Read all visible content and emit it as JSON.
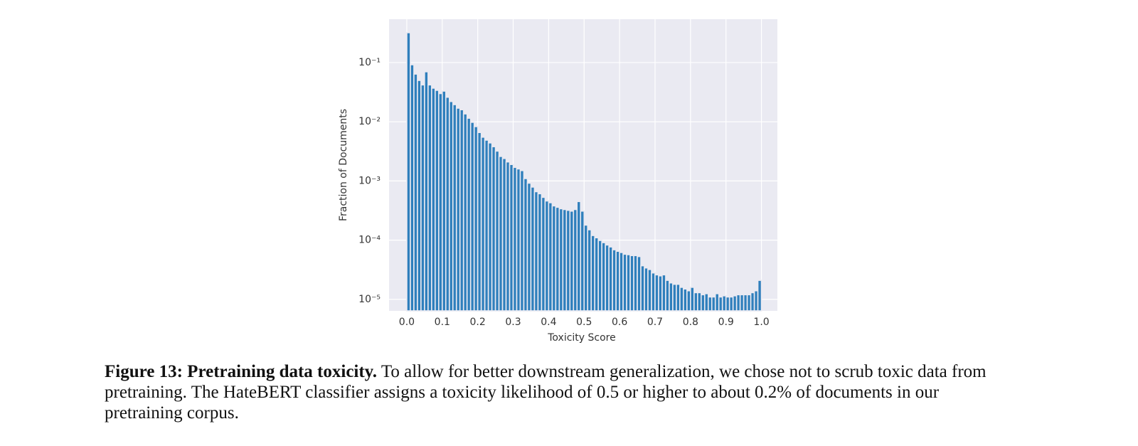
{
  "chart_data": {
    "type": "histogram",
    "xlabel": "Toxicity Score",
    "ylabel": "Fraction of Documents",
    "color": "#2f7fbc",
    "background": "#eaeaf2",
    "grid": true,
    "yscale": "log",
    "xlim": [
      -0.05,
      1.045
    ],
    "ylim": [
      6.4e-06,
      0.54
    ],
    "xticks": [
      {
        "value": 0,
        "label": "0.0"
      },
      0.1,
      0.2,
      0.3,
      0.4,
      0.5,
      0.6,
      0.7,
      0.8,
      0.9,
      {
        "value": 1,
        "label": "1.0"
      }
    ],
    "yticks": [
      {
        "value": 0.1,
        "label": "10⁻¹"
      },
      {
        "value": 0.01,
        "label": "10⁻²"
      },
      {
        "value": 0.001,
        "label": "10⁻³"
      },
      {
        "value": 0.0001,
        "label": "10⁻⁴"
      },
      {
        "value": 1e-05,
        "label": "10⁻⁵"
      }
    ],
    "bins": [
      0,
      0.01,
      0.02,
      0.03,
      0.04,
      0.05,
      0.06,
      0.07,
      0.08,
      0.09,
      0.1,
      0.11,
      0.12,
      0.13,
      0.14,
      0.15,
      0.16,
      0.17,
      0.18,
      0.19,
      0.2,
      0.21,
      0.22,
      0.23,
      0.24,
      0.25,
      0.26,
      0.27,
      0.28,
      0.29,
      0.3,
      0.31,
      0.32,
      0.33,
      0.34,
      0.35,
      0.36,
      0.37,
      0.38,
      0.39,
      0.4,
      0.41,
      0.42,
      0.43,
      0.44,
      0.45,
      0.46,
      0.47,
      0.48,
      0.49,
      0.5,
      0.51,
      0.52,
      0.53,
      0.54,
      0.55,
      0.56,
      0.57,
      0.58,
      0.59,
      0.6,
      0.61,
      0.62,
      0.63,
      0.64,
      0.65,
      0.66,
      0.67,
      0.68,
      0.69,
      0.7,
      0.71,
      0.72,
      0.73,
      0.74,
      0.75,
      0.76,
      0.77,
      0.78,
      0.79,
      0.8,
      0.81,
      0.82,
      0.83,
      0.84,
      0.85,
      0.86,
      0.87,
      0.88,
      0.89,
      0.9,
      0.91,
      0.92,
      0.93,
      0.94,
      0.95,
      0.96,
      0.97,
      0.98,
      0.99,
      1
    ],
    "values": [
      0.32,
      0.092,
      0.064,
      0.05,
      0.042,
      0.07,
      0.042,
      0.037,
      0.034,
      0.03,
      0.033,
      0.026,
      0.022,
      0.0195,
      0.017,
      0.016,
      0.0136,
      0.0115,
      0.0098,
      0.0083,
      0.0066,
      0.0055,
      0.0049,
      0.0044,
      0.0038,
      0.0032,
      0.0026,
      0.0024,
      0.0021,
      0.0019,
      0.0017,
      0.0016,
      0.0015,
      0.0011,
      0.00092,
      0.00079,
      0.00066,
      0.00061,
      0.00053,
      0.00046,
      0.00043,
      0.00038,
      0.00036,
      0.00034,
      0.00033,
      0.00032,
      0.00031,
      0.00033,
      0.00045,
      0.00031,
      0.00018,
      0.00015,
      0.00012,
      0.00011,
      9.9e-05,
      9.1e-05,
      8.3e-05,
      7.7e-05,
      6.9e-05,
      6.5e-05,
      6.2e-05,
      5.8e-05,
      5.7e-05,
      5.5e-05,
      5.5e-05,
      5.3e-05,
      3.7e-05,
      3.4e-05,
      3.2e-05,
      2.8e-05,
      2.6e-05,
      2.5e-05,
      2.6e-05,
      2.1e-05,
      1.9e-05,
      1.8e-05,
      1.8e-05,
      1.6e-05,
      1.5e-05,
      1.4e-05,
      1.6e-05,
      1.3e-05,
      1.3e-05,
      1.2e-05,
      1.25e-05,
      1.1e-05,
      1.1e-05,
      1.25e-05,
      1.1e-05,
      1.15e-05,
      1.1e-05,
      1.1e-05,
      1.15e-05,
      1.2e-05,
      1.2e-05,
      1.2e-05,
      1.2e-05,
      1.3e-05,
      1.4e-05,
      2.1e-05
    ]
  },
  "caption": {
    "label": "Figure 13: Pretraining data toxicity.",
    "text": "To allow for better downstream generalization, we chose not to scrub toxic data from pretraining. The HateBERT classifier assigns a toxicity likelihood of 0.5 or higher to about 0.2% of documents in our pretraining corpus."
  }
}
